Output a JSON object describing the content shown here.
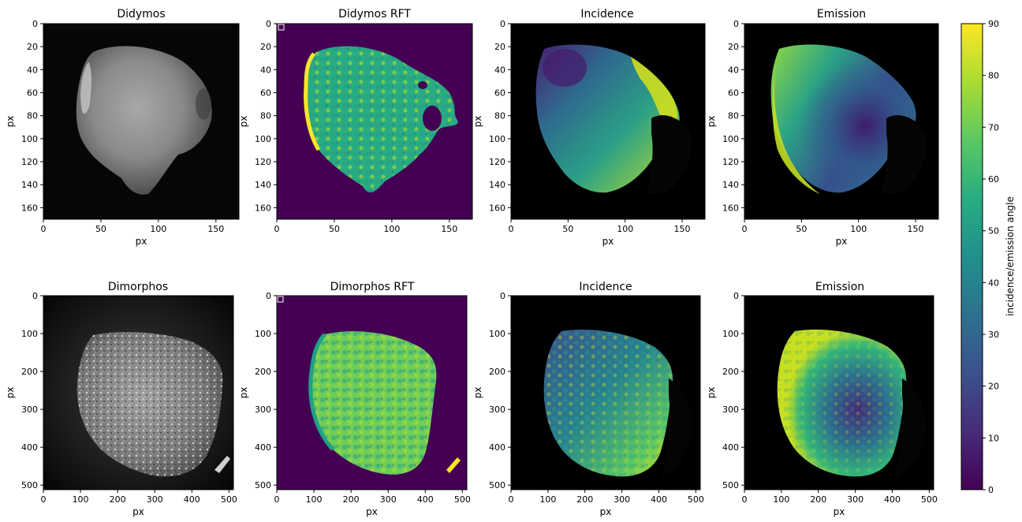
{
  "colors": {
    "viridis": [
      "#440154",
      "#472c7a",
      "#3b518b",
      "#2c718e",
      "#21908d",
      "#27ad81",
      "#5cc863",
      "#aadc32",
      "#fde725"
    ],
    "background": "#000000",
    "rft_background": "#440154"
  },
  "colorbar": {
    "label": "incidence/emission angle",
    "ticks": [
      "0",
      "10",
      "20",
      "30",
      "40",
      "50",
      "60",
      "70",
      "80",
      "90"
    ]
  },
  "chart_data": [
    {
      "type": "heatmap",
      "title": "Didymos",
      "xlabel": "px",
      "ylabel": "px",
      "xlim": [
        0,
        170
      ],
      "ylim": [
        170,
        0
      ],
      "xticks": [
        "0",
        "50",
        "100",
        "150"
      ],
      "yticks": [
        "0",
        "20",
        "40",
        "60",
        "80",
        "100",
        "120",
        "140",
        "160"
      ],
      "colormap": "gray",
      "content": "grayscale image of Didymos"
    },
    {
      "type": "heatmap",
      "title": "Didymos RFT",
      "xlabel": "",
      "ylabel": "px",
      "xlim": [
        0,
        170
      ],
      "ylim": [
        170,
        0
      ],
      "xticks": [
        "0",
        "50",
        "100",
        "150"
      ],
      "yticks": [
        "0",
        "20",
        "40",
        "60",
        "80",
        "100",
        "120",
        "140",
        "160"
      ],
      "colormap": "viridis"
    },
    {
      "type": "heatmap",
      "title": "Incidence",
      "xlabel": "px",
      "ylabel": "px",
      "xlim": [
        0,
        170
      ],
      "ylim": [
        170,
        0
      ],
      "xticks": [
        "0",
        "50",
        "100",
        "150"
      ],
      "yticks": [
        "0",
        "20",
        "40",
        "60",
        "80",
        "100",
        "120",
        "140",
        "160"
      ],
      "colormap": "viridis",
      "value_range": [
        0,
        90
      ]
    },
    {
      "type": "heatmap",
      "title": "Emission",
      "xlabel": "px",
      "ylabel": "px",
      "xlim": [
        0,
        170
      ],
      "ylim": [
        170,
        0
      ],
      "xticks": [
        "0",
        "50",
        "100",
        "150"
      ],
      "yticks": [
        "0",
        "20",
        "40",
        "60",
        "80",
        "100",
        "120",
        "140",
        "160"
      ],
      "colormap": "viridis",
      "value_range": [
        0,
        90
      ]
    },
    {
      "type": "heatmap",
      "title": "Dimorphos",
      "xlabel": "px",
      "ylabel": "px",
      "xlim": [
        0,
        512
      ],
      "ylim": [
        512,
        0
      ],
      "xticks": [
        "0",
        "100",
        "200",
        "300",
        "400",
        "500"
      ],
      "yticks": [
        "0",
        "100",
        "200",
        "300",
        "400",
        "500"
      ],
      "colormap": "gray",
      "content": "grayscale image of Dimorphos"
    },
    {
      "type": "heatmap",
      "title": "Dimorphos RFT",
      "xlabel": "px",
      "ylabel": "px",
      "xlim": [
        0,
        512
      ],
      "ylim": [
        512,
        0
      ],
      "xticks": [
        "0",
        "100",
        "200",
        "300",
        "400",
        "500"
      ],
      "yticks": [
        "0",
        "100",
        "200",
        "300",
        "400",
        "500"
      ],
      "colormap": "viridis"
    },
    {
      "type": "heatmap",
      "title": "Incidence",
      "xlabel": "px",
      "ylabel": "px",
      "xlim": [
        0,
        512
      ],
      "ylim": [
        512,
        0
      ],
      "xticks": [
        "0",
        "100",
        "200",
        "300",
        "400",
        "500"
      ],
      "yticks": [
        "0",
        "100",
        "200",
        "300",
        "400",
        "500"
      ],
      "colormap": "viridis",
      "value_range": [
        0,
        90
      ]
    },
    {
      "type": "heatmap",
      "title": "Emission",
      "xlabel": "px",
      "ylabel": "px",
      "xlim": [
        0,
        512
      ],
      "ylim": [
        512,
        0
      ],
      "xticks": [
        "0",
        "100",
        "200",
        "300",
        "400",
        "500"
      ],
      "yticks": [
        "0",
        "100",
        "200",
        "300",
        "400",
        "500"
      ],
      "colormap": "viridis",
      "value_range": [
        0,
        90
      ]
    }
  ]
}
